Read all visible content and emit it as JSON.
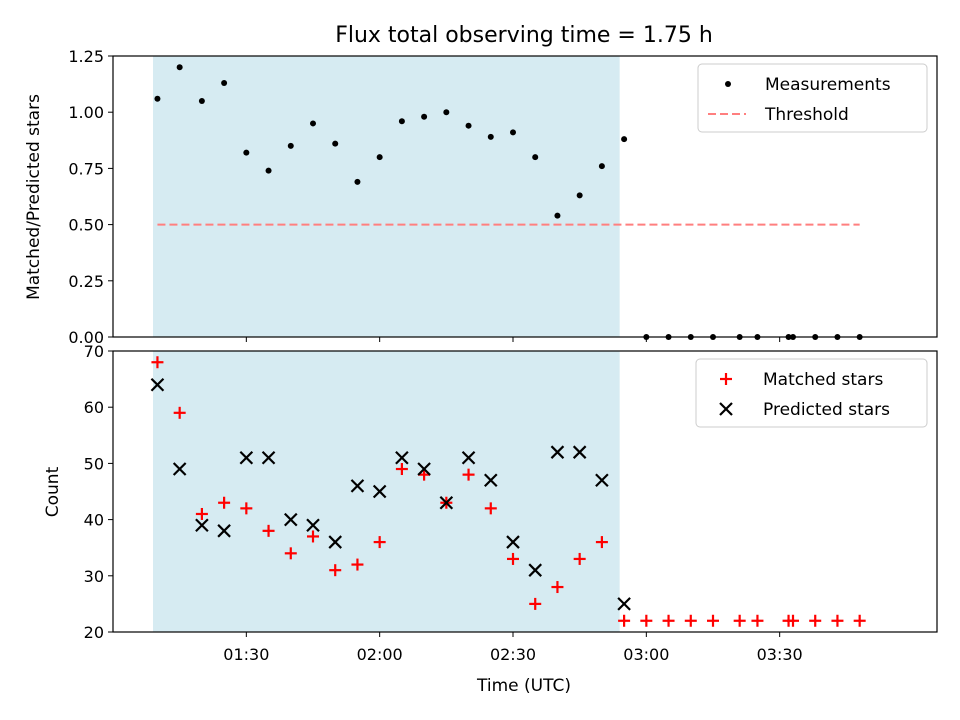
{
  "chart_data": [
    {
      "type": "scatter",
      "title": "Flux total observing time = 1.75 h",
      "xlabel": "",
      "ylabel": "Matched/Predicted stars",
      "ylim": [
        0,
        1.25
      ],
      "yticks": [
        "0.00",
        "0.25",
        "0.50",
        "0.75",
        "1.00",
        "1.25"
      ],
      "xlim_hours": [
        1.0,
        4.09
      ],
      "shaded_span_hours": [
        1.15,
        2.9
      ],
      "shaded_color": "#add8e6",
      "legend_position": "top-right",
      "series": [
        {
          "name": "Measurements",
          "color": "#000000",
          "marker": "dot",
          "x": [
            "01:10",
            "01:15",
            "01:20",
            "01:25",
            "01:30",
            "01:35",
            "01:40",
            "01:45",
            "01:50",
            "01:55",
            "02:00",
            "02:05",
            "02:10",
            "02:15",
            "02:20",
            "02:25",
            "02:30",
            "02:35",
            "02:40",
            "02:45",
            "02:50",
            "02:55",
            "03:00",
            "03:05",
            "03:10",
            "03:15",
            "03:21",
            "03:25",
            "03:32",
            "03:33",
            "03:38",
            "03:43",
            "03:48"
          ],
          "y": [
            1.06,
            1.2,
            1.05,
            1.13,
            0.82,
            0.74,
            0.85,
            0.95,
            0.86,
            0.69,
            0.8,
            0.96,
            0.98,
            1.0,
            0.94,
            0.89,
            0.91,
            0.8,
            0.54,
            0.63,
            0.76,
            0.88,
            0,
            0,
            0,
            0,
            0,
            0,
            0,
            0,
            0,
            0,
            0
          ]
        },
        {
          "name": "Threshold",
          "color": "#ff7f7f",
          "style": "dashed",
          "x": [
            "01:10",
            "03:48"
          ],
          "y": [
            0.5,
            0.5
          ]
        }
      ]
    },
    {
      "type": "scatter",
      "title": "",
      "xlabel": "Time (UTC)",
      "ylabel": "Count",
      "ylim": [
        20,
        70
      ],
      "yticks": [
        "20",
        "30",
        "40",
        "50",
        "60",
        "70"
      ],
      "xticks": [
        "01:30",
        "02:00",
        "02:30",
        "03:00",
        "03:30"
      ],
      "xlim_hours": [
        1.0,
        4.09
      ],
      "shaded_span_hours": [
        1.15,
        2.9
      ],
      "shaded_color": "#add8e6",
      "legend_position": "top-right",
      "series": [
        {
          "name": "Matched stars",
          "color": "#ff0000",
          "marker": "plus",
          "x": [
            "01:10",
            "01:15",
            "01:20",
            "01:25",
            "01:30",
            "01:35",
            "01:40",
            "01:45",
            "01:50",
            "01:55",
            "02:00",
            "02:05",
            "02:10",
            "02:15",
            "02:20",
            "02:25",
            "02:30",
            "02:35",
            "02:40",
            "02:45",
            "02:50",
            "02:55",
            "03:00",
            "03:05",
            "03:10",
            "03:15",
            "03:21",
            "03:25",
            "03:32",
            "03:33",
            "03:38",
            "03:43",
            "03:48"
          ],
          "y": [
            68,
            59,
            41,
            43,
            42,
            38,
            34,
            37,
            31,
            32,
            36,
            49,
            48,
            43,
            48,
            42,
            33,
            25,
            28,
            33,
            36,
            22,
            22,
            22,
            22,
            22,
            22,
            22,
            22,
            22,
            22,
            22,
            22
          ]
        },
        {
          "name": "Predicted stars",
          "color": "#000000",
          "marker": "x",
          "x": [
            "01:10",
            "01:15",
            "01:20",
            "01:25",
            "01:30",
            "01:35",
            "01:40",
            "01:45",
            "01:50",
            "01:55",
            "02:00",
            "02:05",
            "02:10",
            "02:15",
            "02:20",
            "02:25",
            "02:30",
            "02:35",
            "02:40",
            "02:45",
            "02:50",
            "02:55"
          ],
          "y": [
            64,
            49,
            39,
            38,
            51,
            51,
            40,
            39,
            36,
            46,
            45,
            51,
            49,
            43,
            51,
            47,
            36,
            31,
            52,
            52,
            47,
            25
          ]
        }
      ]
    }
  ]
}
